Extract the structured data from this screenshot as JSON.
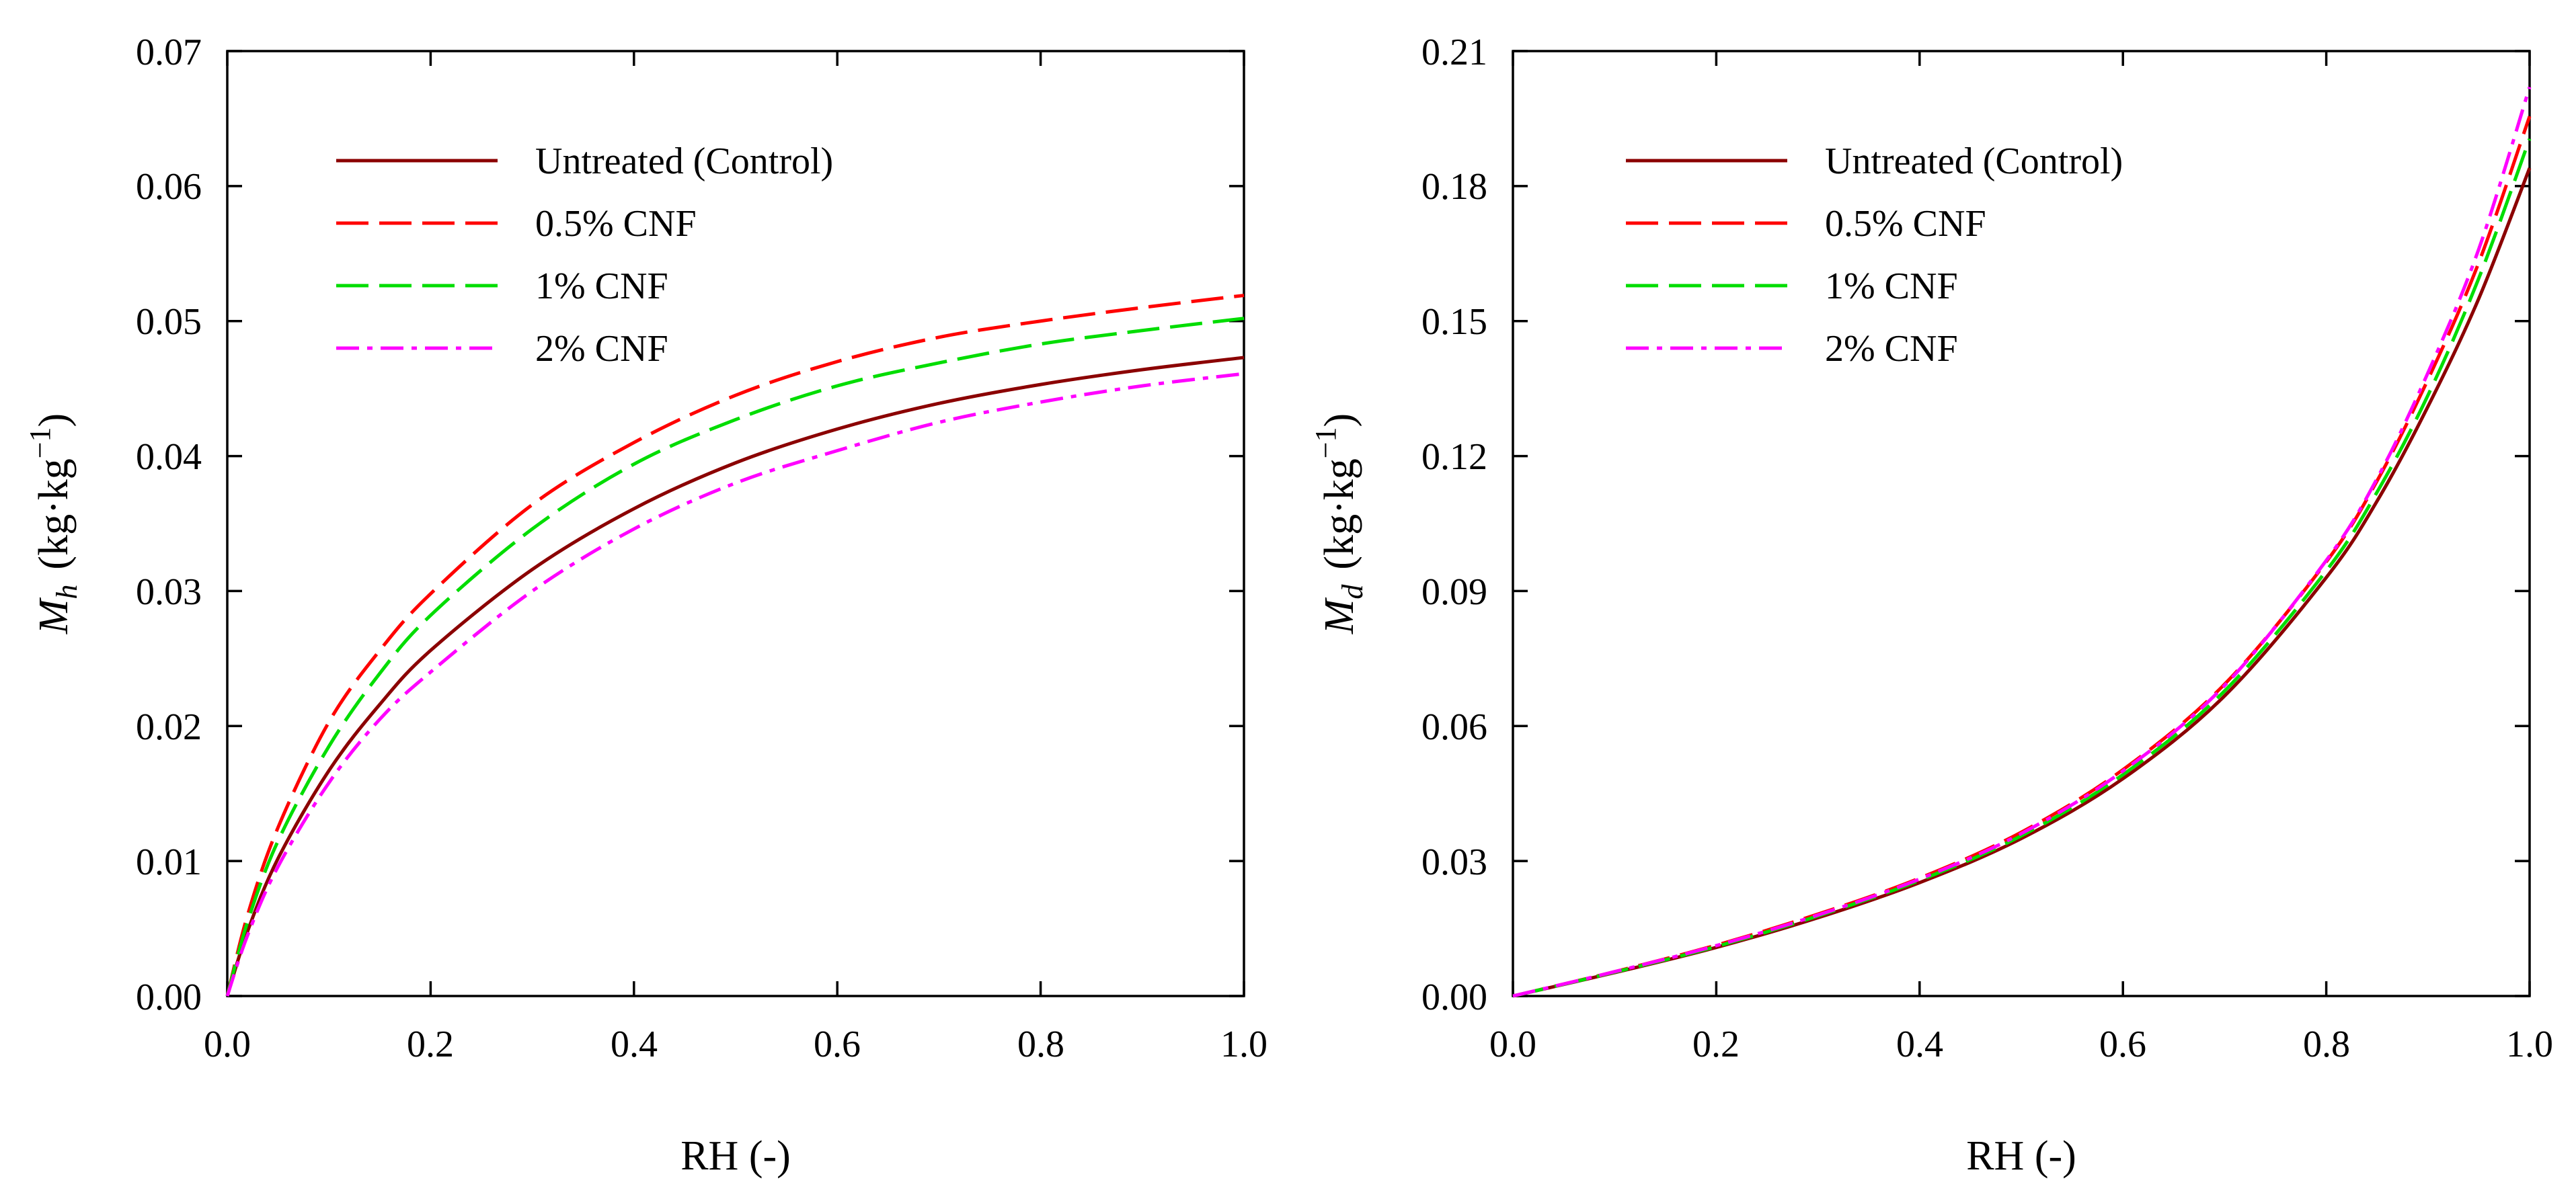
{
  "chart_data": [
    {
      "type": "line",
      "id": "left",
      "xlabel": "RH (-)",
      "ylabel": {
        "symbol": "M",
        "subscript": "h",
        "units": "(kg·kg",
        "units_exponent": "−1",
        "units_close": ")"
      },
      "xlim": [
        0,
        1
      ],
      "ylim": [
        0,
        0.07
      ],
      "xticks": [
        "0.0",
        "0.2",
        "0.4",
        "0.6",
        "0.8",
        "1.0"
      ],
      "yticks": [
        "0.00",
        "0.01",
        "0.02",
        "0.03",
        "0.04",
        "0.05",
        "0.06",
        "0.07"
      ],
      "x": [
        0,
        0.02,
        0.05,
        0.1,
        0.15,
        0.2,
        0.3,
        0.4,
        0.5,
        0.6,
        0.7,
        0.8,
        0.9,
        1.0
      ],
      "series": [
        {
          "name": "Untreated (Control)",
          "color": "#8b0000",
          "dash": "solid",
          "values": [
            0,
            0.0048,
            0.0102,
            0.0167,
            0.0216,
            0.0256,
            0.0316,
            0.0361,
            0.0395,
            0.042,
            0.0439,
            0.0453,
            0.0464,
            0.0473
          ]
        },
        {
          "name": "0.5% CNF",
          "color": "#ff0000",
          "dash": "long",
          "values": [
            0,
            0.006,
            0.0125,
            0.0203,
            0.0256,
            0.0298,
            0.0364,
            0.041,
            0.0445,
            0.047,
            0.0488,
            0.05,
            0.051,
            0.0519
          ]
        },
        {
          "name": "1% CNF",
          "color": "#00dd00",
          "dash": "long",
          "values": [
            0,
            0.0055,
            0.0115,
            0.0185,
            0.0239,
            0.0282,
            0.0346,
            0.0394,
            0.0427,
            0.0452,
            0.0469,
            0.0483,
            0.0493,
            0.0502
          ]
        },
        {
          "name": "2% CNF",
          "color": "#ff00ff",
          "dash": "dashdot",
          "values": [
            0,
            0.0045,
            0.0096,
            0.0158,
            0.0205,
            0.024,
            0.03,
            0.0346,
            0.038,
            0.0404,
            0.0425,
            0.044,
            0.0452,
            0.0461
          ]
        }
      ]
    },
    {
      "type": "line",
      "id": "right",
      "xlabel": "RH (-)",
      "ylabel": {
        "symbol": "M",
        "subscript": "d",
        "units": "(kg·kg",
        "units_exponent": "−1",
        "units_close": ")"
      },
      "xlim": [
        0,
        1
      ],
      "ylim": [
        0,
        0.21
      ],
      "xticks": [
        "0.0",
        "0.2",
        "0.4",
        "0.6",
        "0.8",
        "1.0"
      ],
      "yticks": [
        "0.00",
        "0.03",
        "0.06",
        "0.09",
        "0.12",
        "0.15",
        "0.18",
        "0.21"
      ],
      "x": [
        0,
        0.1,
        0.2,
        0.3,
        0.4,
        0.5,
        0.6,
        0.7,
        0.8,
        0.85,
        0.9,
        0.95,
        1.0
      ],
      "series": [
        {
          "name": "Untreated (Control)",
          "color": "#8b0000",
          "dash": "solid",
          "values": [
            0,
            0.0052,
            0.0108,
            0.0174,
            0.0252,
            0.035,
            0.0483,
            0.0667,
            0.093,
            0.11,
            0.131,
            0.155,
            0.184
          ]
        },
        {
          "name": "0.5% CNF",
          "color": "#ff0000",
          "dash": "long",
          "values": [
            0,
            0.0054,
            0.0113,
            0.0182,
            0.0262,
            0.0364,
            0.0503,
            0.0693,
            0.0965,
            0.1145,
            0.137,
            0.163,
            0.1955
          ]
        },
        {
          "name": "1% CNF",
          "color": "#00dd00",
          "dash": "long",
          "values": [
            0,
            0.0053,
            0.011,
            0.0178,
            0.0257,
            0.0356,
            0.0492,
            0.0678,
            0.0945,
            0.112,
            0.1335,
            0.1595,
            0.1905
          ]
        },
        {
          "name": "2% CNF",
          "color": "#ff00ff",
          "dash": "dashdot",
          "values": [
            0,
            0.0054,
            0.0112,
            0.018,
            0.026,
            0.0361,
            0.05,
            0.069,
            0.0968,
            0.115,
            0.1385,
            0.166,
            0.202
          ]
        }
      ]
    }
  ]
}
